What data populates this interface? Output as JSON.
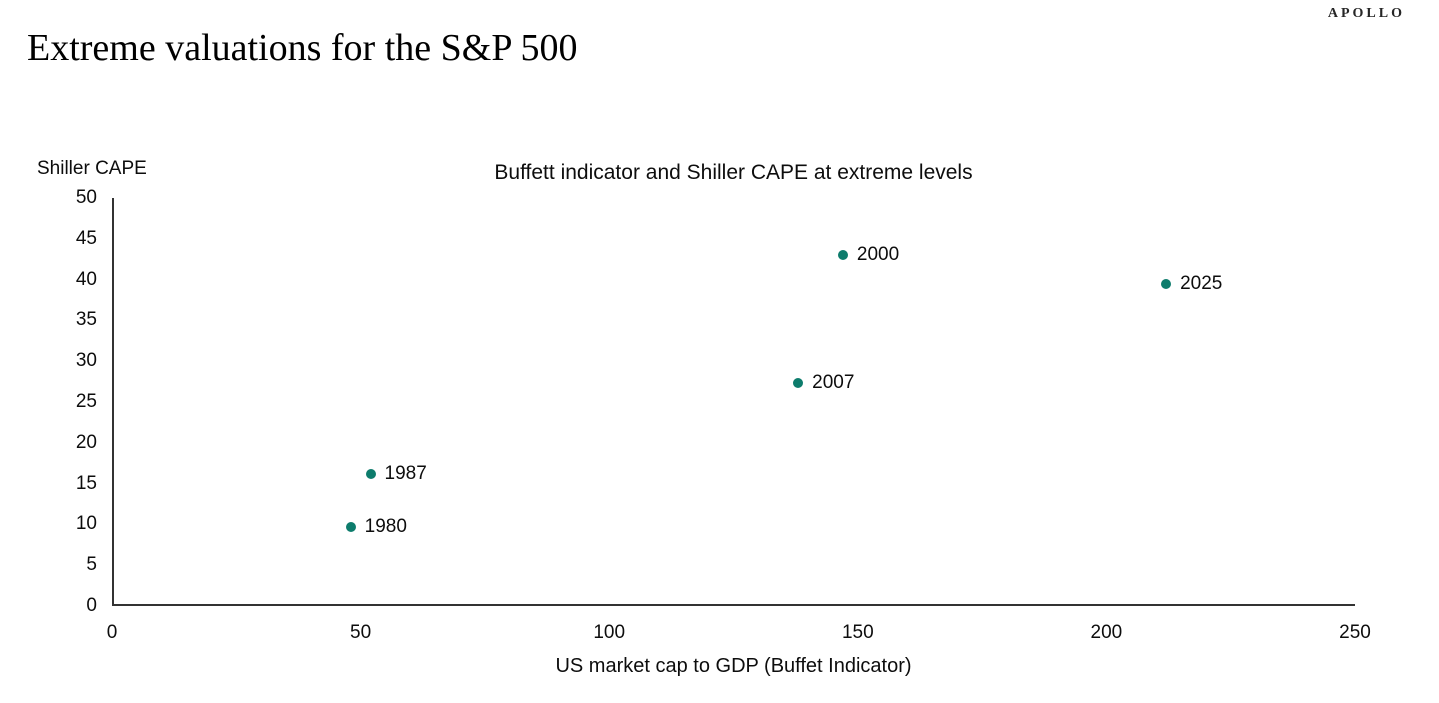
{
  "page": {
    "logo": "APOLLO",
    "title": "Extreme valuations for the S&P 500"
  },
  "chart_data": {
    "type": "scatter",
    "title": "Buffett indicator and Shiller CAPE at extreme levels",
    "xlabel": "US market cap to GDP (Buffet Indicator)",
    "ylabel": "Shiller CAPE",
    "xlim": [
      0,
      250
    ],
    "ylim": [
      0,
      50
    ],
    "xticks": [
      0,
      50,
      100,
      150,
      200,
      250
    ],
    "yticks": [
      0,
      5,
      10,
      15,
      20,
      25,
      30,
      35,
      40,
      45,
      50
    ],
    "grid": false,
    "legend_position": "none",
    "point_color": "#0D7C6C",
    "axis_color": "#333333",
    "points": [
      {
        "label": "1980",
        "x": 48,
        "y": 9.7
      },
      {
        "label": "1987",
        "x": 52,
        "y": 16.2
      },
      {
        "label": "2007",
        "x": 138,
        "y": 27.3
      },
      {
        "label": "2000",
        "x": 147,
        "y": 43
      },
      {
        "label": "2025",
        "x": 212,
        "y": 39.5
      }
    ]
  }
}
